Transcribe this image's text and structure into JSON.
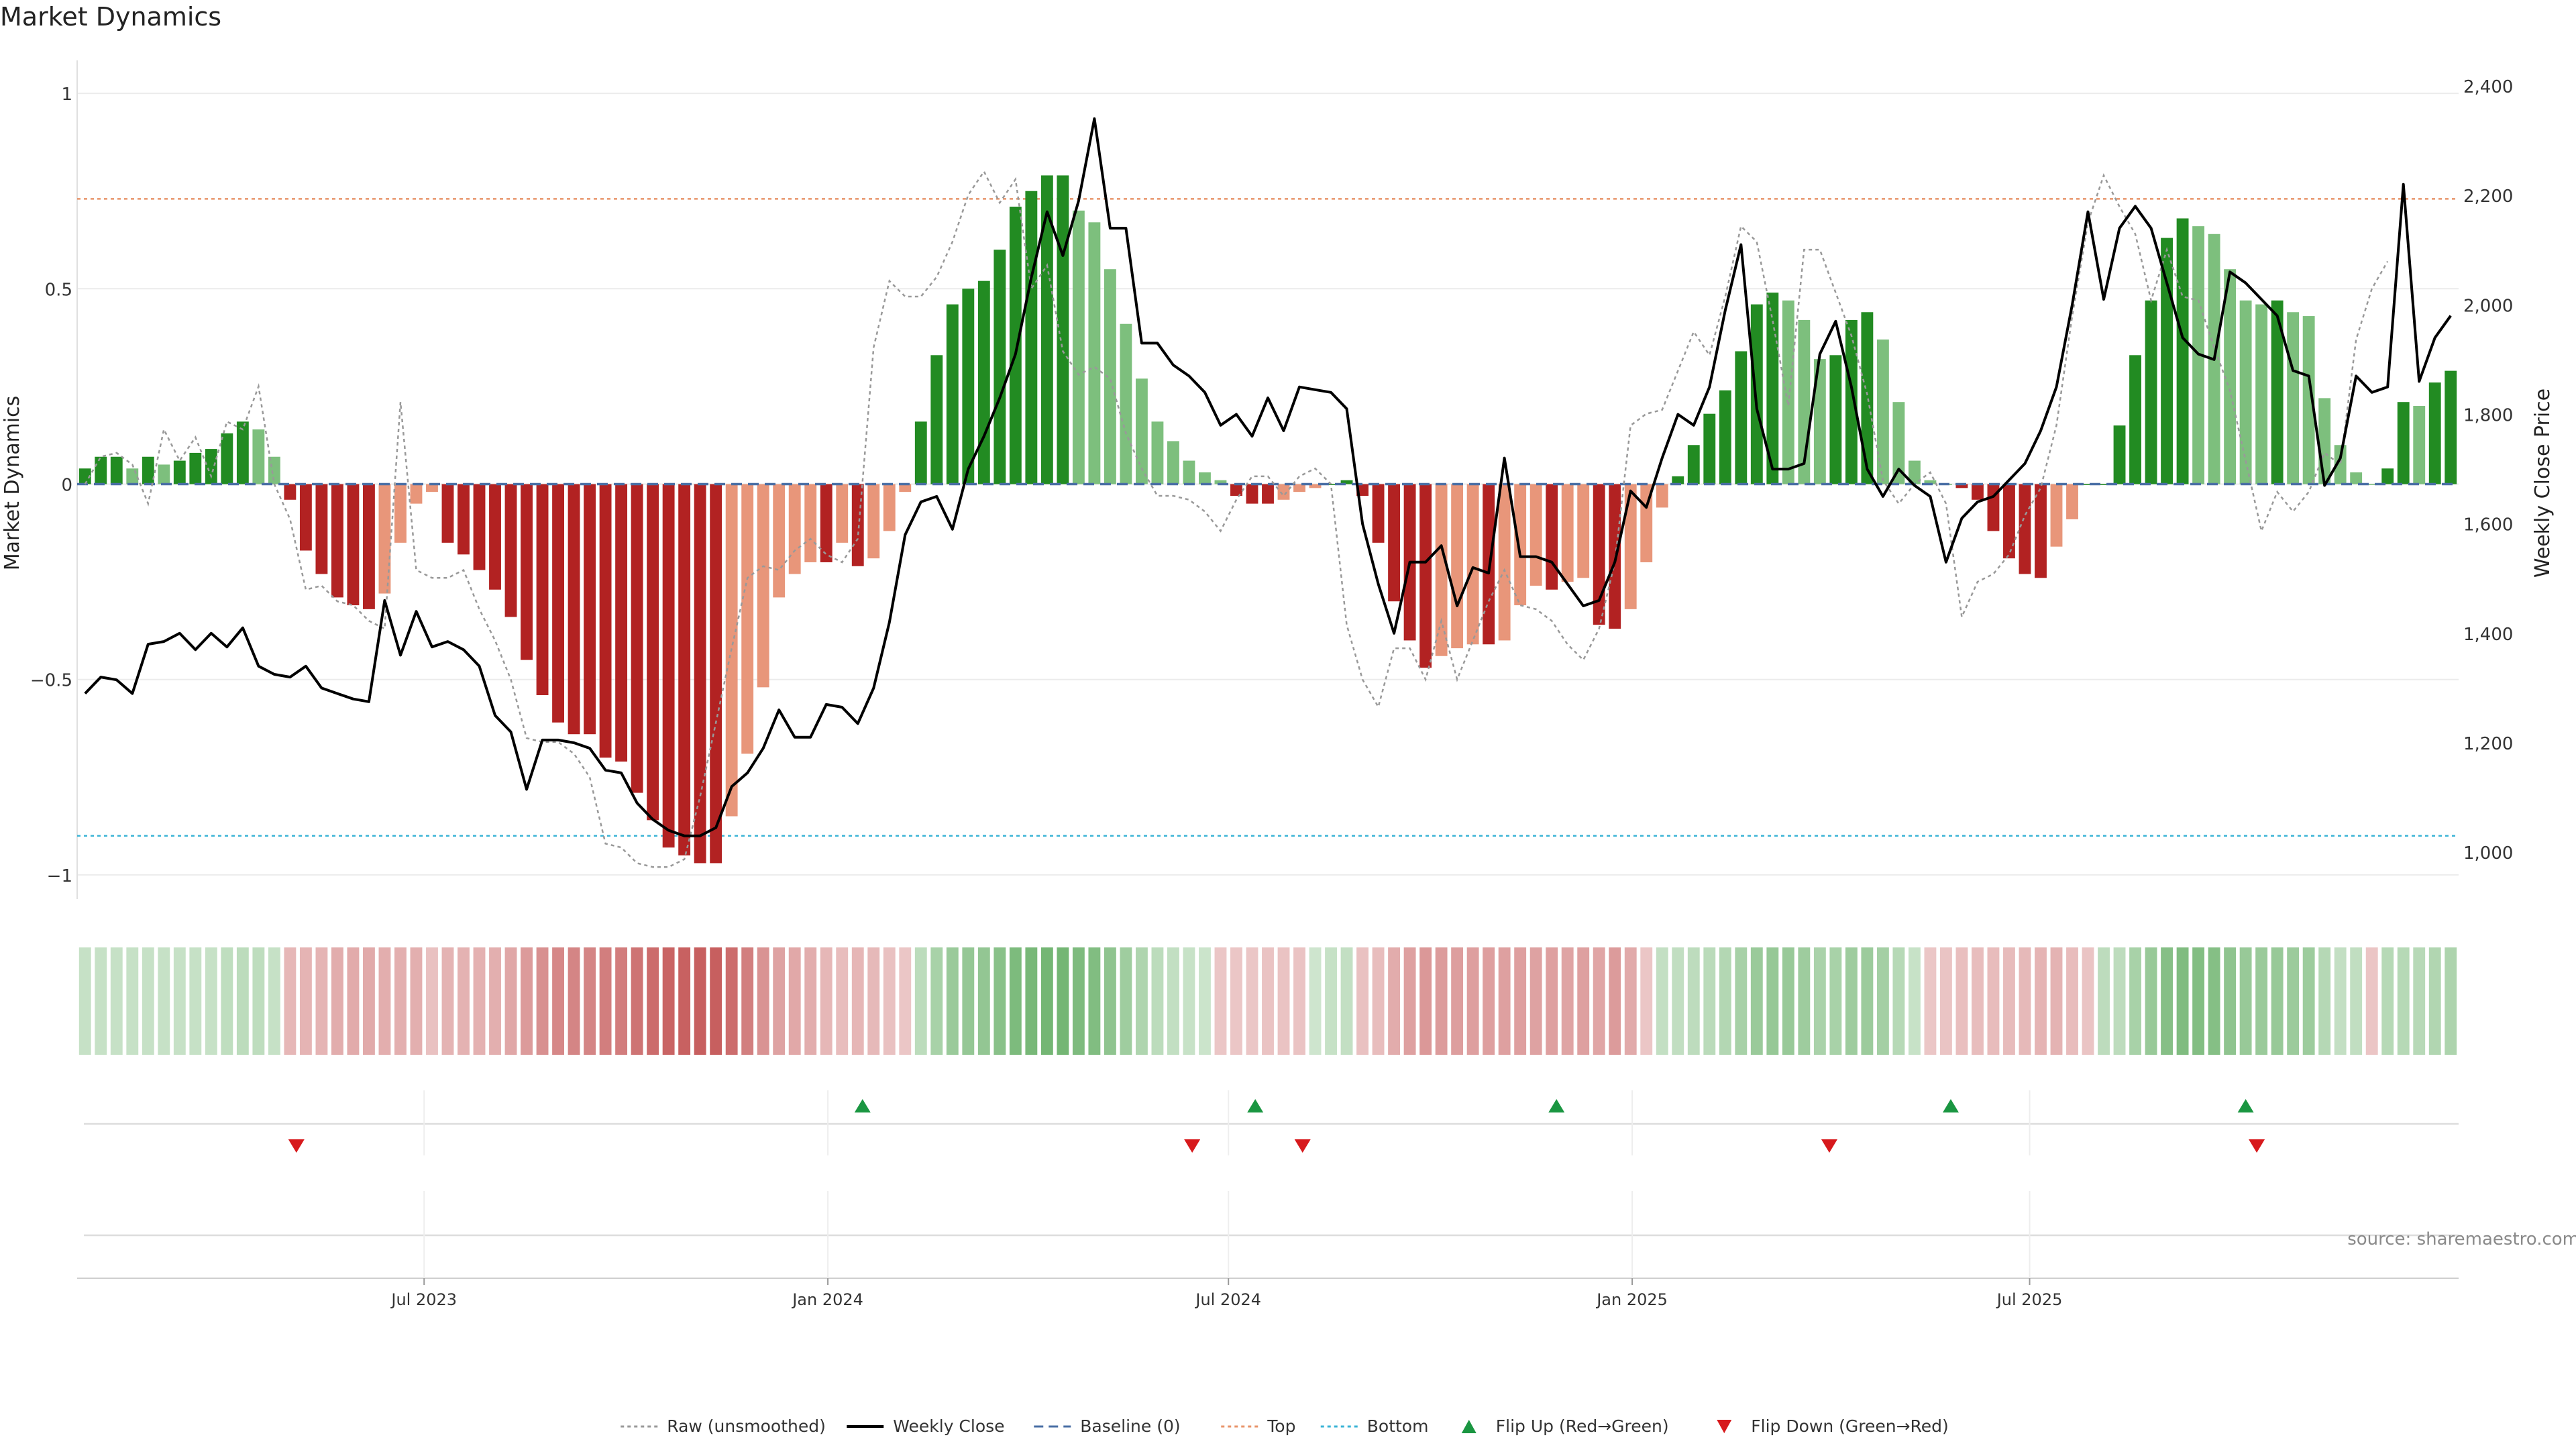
{
  "chart_data": {
    "title": "Market Dynamics",
    "type": "bar",
    "y_left_label": "Market Dynamics",
    "y_right_label": "Weekly Close Price",
    "y_left_ticks": [
      "1",
      "0.5",
      "0",
      "−0.5",
      "−1"
    ],
    "y_left_range": [
      -1.05,
      1.05
    ],
    "y_right_ticks": [
      "2,400",
      "2,200",
      "2,000",
      "1,800",
      "1,600",
      "1,400",
      "1,200",
      "1,000"
    ],
    "y_right_range": [
      923,
      2422
    ],
    "x_tick_labels": [
      "Jul 2023",
      "Jan 2024",
      "Jul 2024",
      "Jan 2025",
      "Jul 2025"
    ],
    "x_tick_index": [
      21.5,
      47.1,
      72.5,
      98.1,
      123.3
    ],
    "top_threshold": 0.73,
    "bottom_threshold": -0.9,
    "series": [
      {
        "name": "Market Dynamics",
        "values": [
          0.04,
          0.07,
          0.07,
          0.04,
          0.07,
          0.05,
          0.06,
          0.08,
          0.09,
          0.13,
          0.16,
          0.14,
          0.07,
          -0.04,
          -0.17,
          -0.23,
          -0.29,
          -0.31,
          -0.32,
          -0.28,
          -0.15,
          -0.05,
          -0.02,
          -0.15,
          -0.18,
          -0.22,
          -0.27,
          -0.34,
          -0.45,
          -0.54,
          -0.61,
          -0.64,
          -0.64,
          -0.7,
          -0.71,
          -0.79,
          -0.86,
          -0.93,
          -0.95,
          -0.97,
          -0.97,
          -0.85,
          -0.69,
          -0.52,
          -0.29,
          -0.23,
          -0.2,
          -0.2,
          -0.15,
          -0.21,
          -0.19,
          -0.12,
          -0.02,
          0.16,
          0.33,
          0.46,
          0.5,
          0.52,
          0.6,
          0.71,
          0.75,
          0.79,
          0.79,
          0.7,
          0.67,
          0.55,
          0.41,
          0.27,
          0.16,
          0.11,
          0.06,
          0.03,
          0.01,
          -0.03,
          -0.05,
          -0.05,
          -0.04,
          -0.02,
          -0.01,
          0.0,
          0.01,
          -0.03,
          -0.15,
          -0.3,
          -0.4,
          -0.47,
          -0.44,
          -0.42,
          -0.41,
          -0.41,
          -0.4,
          -0.31,
          -0.26,
          -0.27,
          -0.25,
          -0.24,
          -0.36,
          -0.37,
          -0.32,
          -0.2,
          -0.06,
          0.02,
          0.1,
          0.18,
          0.24,
          0.34,
          0.46,
          0.49,
          0.47,
          0.42,
          0.32,
          0.33,
          0.42,
          0.44,
          0.37,
          0.21,
          0.06,
          0.01,
          0.0,
          -0.01,
          -0.04,
          -0.12,
          -0.19,
          -0.23,
          -0.24,
          -0.16,
          -0.09,
          0.0,
          0.0,
          0.15,
          0.33,
          0.47,
          0.63,
          0.68,
          0.66,
          0.64,
          0.55,
          0.47,
          0.46,
          0.47,
          0.44,
          0.43,
          0.22,
          0.1,
          0.03,
          0.0,
          0.04,
          0.21,
          0.2,
          0.26,
          0.29
        ],
        "color_up": "#228B22",
        "color_down": "#B22222"
      },
      {
        "name": "Raw (unsmoothed)",
        "values": [
          0.0,
          0.07,
          0.08,
          0.05,
          -0.05,
          0.14,
          0.06,
          0.12,
          0.02,
          0.16,
          0.14,
          0.25,
          0.0,
          -0.09,
          -0.27,
          -0.26,
          -0.3,
          -0.31,
          -0.35,
          -0.37,
          0.21,
          -0.22,
          -0.24,
          -0.24,
          -0.22,
          -0.32,
          -0.4,
          -0.5,
          -0.65,
          -0.66,
          -0.66,
          -0.69,
          -0.75,
          -0.92,
          -0.93,
          -0.97,
          -0.98,
          -0.98,
          -0.96,
          -0.8,
          -0.61,
          -0.42,
          -0.24,
          -0.21,
          -0.22,
          -0.17,
          -0.14,
          -0.18,
          -0.2,
          -0.14,
          0.35,
          0.52,
          0.48,
          0.48,
          0.53,
          0.62,
          0.74,
          0.8,
          0.72,
          0.78,
          0.5,
          0.56,
          0.34,
          0.28,
          0.3,
          0.27,
          0.13,
          0.04,
          -0.03,
          -0.03,
          -0.04,
          -0.07,
          -0.12,
          -0.04,
          0.02,
          0.02,
          -0.03,
          0.02,
          0.04,
          0.0,
          -0.36,
          -0.5,
          -0.57,
          -0.42,
          -0.42,
          -0.5,
          -0.35,
          -0.5,
          -0.4,
          -0.3,
          -0.22,
          -0.31,
          -0.32,
          -0.35,
          -0.41,
          -0.45,
          -0.37,
          -0.2,
          0.15,
          0.18,
          0.19,
          0.29,
          0.39,
          0.33,
          0.48,
          0.66,
          0.62,
          0.42,
          0.2,
          0.6,
          0.6,
          0.49,
          0.38,
          0.23,
          0.01,
          -0.05,
          0.0,
          0.03,
          -0.05,
          -0.34,
          -0.25,
          -0.23,
          -0.18,
          -0.08,
          -0.01,
          0.15,
          0.43,
          0.67,
          0.79,
          0.71,
          0.64,
          0.47,
          0.6,
          0.48,
          0.47,
          0.35,
          0.24,
          0.06,
          -0.12,
          -0.02,
          -0.07,
          -0.02,
          0.08,
          0.05,
          0.37,
          0.5,
          0.57
        ],
        "color": "#999999"
      },
      {
        "name": "Weekly Close",
        "values": [
          1290,
          1320,
          1315,
          1290,
          1380,
          1385,
          1400,
          1370,
          1400,
          1375,
          1410,
          1340,
          1325,
          1320,
          1340,
          1300,
          1290,
          1280,
          1275,
          1460,
          1360,
          1440,
          1375,
          1385,
          1370,
          1340,
          1250,
          1220,
          1115,
          1205,
          1205,
          1200,
          1190,
          1150,
          1145,
          1090,
          1060,
          1040,
          1030,
          1030,
          1045,
          1120,
          1145,
          1190,
          1260,
          1210,
          1210,
          1270,
          1265,
          1235,
          1300,
          1420,
          1580,
          1640,
          1650,
          1590,
          1700,
          1760,
          1830,
          1910,
          2050,
          2170,
          2090,
          2190,
          2340,
          2140,
          2140,
          1930,
          1930,
          1890,
          1870,
          1840,
          1780,
          1800,
          1760,
          1830,
          1770,
          1850,
          1845,
          1840,
          1810,
          1600,
          1490,
          1400,
          1530,
          1530,
          1560,
          1450,
          1520,
          1510,
          1720,
          1540,
          1540,
          1530,
          1490,
          1450,
          1460,
          1530,
          1660,
          1630,
          1720,
          1800,
          1780,
          1850,
          1990,
          2110,
          1810,
          1700,
          1700,
          1710,
          1910,
          1970,
          1850,
          1700,
          1650,
          1700,
          1670,
          1650,
          1530,
          1610,
          1640,
          1650,
          1680,
          1710,
          1770,
          1850,
          2000,
          2170,
          2010,
          2140,
          2180,
          2140,
          2040,
          1940,
          1910,
          1900,
          2060,
          2040,
          2010,
          1980,
          1880,
          1870,
          1670,
          1720,
          1870,
          1840,
          1850,
          2220,
          1860,
          1940,
          1980
        ],
        "color": "#000000"
      }
    ],
    "regime_strip": {
      "title": "",
      "values": [
        0.07,
        0.07,
        0.07,
        0.07,
        0.07,
        0.07,
        0.07,
        0.07,
        0.07,
        0.13,
        0.16,
        0.14,
        0.07,
        -0.2,
        -0.23,
        -0.23,
        -0.29,
        -0.31,
        -0.32,
        -0.28,
        -0.27,
        -0.27,
        -0.12,
        -0.24,
        -0.25,
        -0.26,
        -0.27,
        -0.34,
        -0.45,
        -0.54,
        -0.61,
        -0.64,
        -0.64,
        -0.7,
        -0.71,
        -0.79,
        -0.86,
        -0.93,
        -0.95,
        -0.97,
        -0.97,
        -0.85,
        -0.69,
        -0.52,
        -0.39,
        -0.33,
        -0.29,
        -0.2,
        -0.15,
        -0.21,
        -0.19,
        -0.12,
        -0.07,
        0.16,
        0.33,
        0.46,
        0.5,
        0.52,
        0.6,
        0.71,
        0.75,
        0.79,
        0.79,
        0.7,
        0.67,
        0.55,
        0.41,
        0.27,
        0.16,
        0.11,
        0.06,
        0.03,
        -0.07,
        -0.07,
        -0.07,
        -0.1,
        -0.1,
        -0.1,
        0.0,
        0.07,
        0.1,
        -0.12,
        -0.15,
        -0.3,
        -0.4,
        -0.47,
        -0.44,
        -0.42,
        -0.41,
        -0.41,
        -0.4,
        -0.41,
        -0.39,
        -0.4,
        -0.37,
        -0.4,
        -0.36,
        -0.45,
        -0.32,
        -0.07,
        0.1,
        0.12,
        0.15,
        0.18,
        0.24,
        0.34,
        0.46,
        0.49,
        0.47,
        0.42,
        0.32,
        0.33,
        0.42,
        0.44,
        0.37,
        0.21,
        0.06,
        -0.07,
        -0.09,
        -0.13,
        -0.15,
        -0.16,
        -0.17,
        -0.19,
        -0.23,
        -0.24,
        -0.16,
        -0.09,
        0.15,
        0.15,
        0.33,
        0.47,
        0.63,
        0.68,
        0.66,
        0.64,
        0.55,
        0.47,
        0.46,
        0.47,
        0.44,
        0.43,
        0.22,
        0.1,
        0.12,
        -0.08,
        0.21,
        0.21,
        0.2,
        0.26,
        0.29
      ]
    },
    "flip_up_index": [
      49.3,
      74.2,
      93.3,
      118.3,
      137.0
    ],
    "flip_down_index": [
      13.4,
      70.2,
      77.2,
      110.6,
      137.7
    ],
    "grid": true,
    "legend_position": "bottom-center",
    "legend": [
      {
        "name": "Raw (unsmoothed)",
        "kind": "dotted",
        "color": "#999999"
      },
      {
        "name": "Weekly Close",
        "kind": "solid",
        "color": "#000000"
      },
      {
        "name": "Baseline (0)",
        "kind": "dashed",
        "color": "#4a6fa5"
      },
      {
        "name": "Top",
        "kind": "dotted",
        "color": "#e8956b"
      },
      {
        "name": "Bottom",
        "kind": "dotted",
        "color": "#3bb4d6"
      },
      {
        "name": "Flip Up (Red→Green)",
        "kind": "up-triangle",
        "color": "#1a9641"
      },
      {
        "name": "Flip Down (Green→Red)",
        "kind": "down-triangle",
        "color": "#d7191c"
      }
    ]
  },
  "source_text": "source: sharemaestro.com"
}
